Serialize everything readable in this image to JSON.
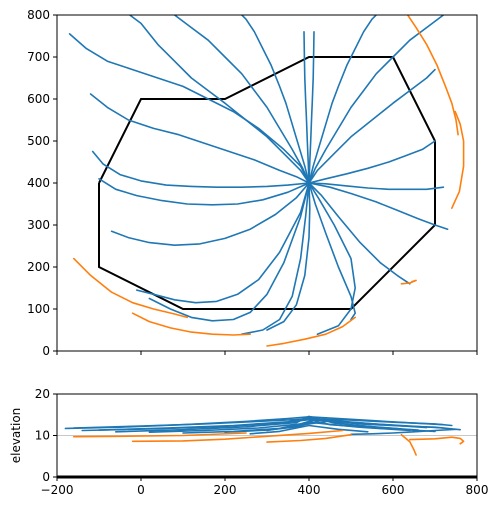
{
  "chart_data": [
    {
      "type": "line",
      "title": "",
      "xlabel": "",
      "ylabel": "",
      "xlim": [
        -200,
        800
      ],
      "ylim": [
        0,
        800
      ],
      "xticks": [
        -200,
        0,
        200,
        400,
        600,
        800
      ],
      "xtick_labels": [
        "",
        "",
        "",
        "",
        "",
        ""
      ],
      "yticks": [
        0,
        100,
        200,
        300,
        400,
        500,
        600,
        700,
        800
      ],
      "ytick_labels": [
        "0",
        "100",
        "200",
        "300",
        "400",
        "500",
        "600",
        "700",
        "800"
      ],
      "grid": false,
      "colors": {
        "stream": "#1f77b4",
        "outside": "#ff7f0e",
        "boundary": "#000000"
      },
      "boundary": {
        "name": "polygon",
        "x": [
          -100,
          0,
          200,
          400,
          600,
          700,
          700,
          500,
          100,
          -100,
          -100
        ],
        "y": [
          400,
          600,
          600,
          700,
          700,
          500,
          300,
          100,
          100,
          200,
          400
        ]
      },
      "center": [
        400,
        400
      ],
      "series": [
        {
          "color": "#1f77b4",
          "x": [
            400,
            380,
            340,
            300,
            250,
            200,
            160,
            120,
            80,
            40,
            0,
            -40
          ],
          "y": [
            400,
            430,
            470,
            510,
            550,
            590,
            620,
            650,
            690,
            730,
            780,
            810
          ]
        },
        {
          "color": "#1f77b4",
          "x": [
            400,
            385,
            360,
            330,
            300,
            270,
            240,
            200,
            160,
            120,
            80,
            60
          ],
          "y": [
            400,
            435,
            480,
            530,
            580,
            620,
            660,
            700,
            740,
            770,
            800,
            815
          ]
        },
        {
          "color": "#1f77b4",
          "x": [
            400,
            390,
            375,
            360,
            345,
            330,
            310,
            290,
            270,
            250,
            230
          ],
          "y": [
            400,
            440,
            490,
            540,
            590,
            630,
            680,
            720,
            760,
            790,
            810
          ]
        },
        {
          "color": "#1f77b4",
          "x": [
            400,
            398,
            396,
            394,
            392,
            390,
            389,
            388
          ],
          "y": [
            400,
            450,
            500,
            550,
            600,
            650,
            700,
            760
          ]
        },
        {
          "color": "#1f77b4",
          "x": [
            400,
            402,
            404,
            406,
            408,
            410,
            411,
            412
          ],
          "y": [
            400,
            450,
            500,
            550,
            600,
            650,
            700,
            760
          ]
        },
        {
          "color": "#1f77b4",
          "x": [
            400,
            410,
            425,
            440,
            455,
            470,
            490,
            510,
            530,
            550,
            570
          ],
          "y": [
            400,
            440,
            490,
            540,
            590,
            630,
            680,
            720,
            760,
            790,
            810
          ]
        },
        {
          "color": "#1f77b4",
          "x": [
            400,
            415,
            440,
            470,
            500,
            530,
            560,
            600,
            640,
            680,
            720,
            740
          ],
          "y": [
            400,
            435,
            480,
            530,
            580,
            620,
            660,
            700,
            740,
            770,
            800,
            815
          ]
        },
        {
          "color": "#1f77b4",
          "x": [
            400,
            420,
            460,
            500,
            550,
            600,
            640,
            680,
            700
          ],
          "y": [
            400,
            430,
            470,
            510,
            550,
            590,
            620,
            650,
            670
          ]
        },
        {
          "color": "#1f77b4",
          "x": [
            -170,
            -130,
            -80,
            -20,
            40,
            100,
            160,
            220,
            280,
            340,
            380,
            400
          ],
          "y": [
            755,
            720,
            690,
            670,
            650,
            630,
            600,
            570,
            530,
            480,
            440,
            400
          ]
        },
        {
          "color": "#1f77b4",
          "x": [
            -120,
            -80,
            -30,
            30,
            90,
            150,
            210,
            270,
            330,
            370,
            400
          ],
          "y": [
            612,
            580,
            550,
            530,
            515,
            495,
            475,
            455,
            430,
            415,
            400
          ]
        },
        {
          "color": "#1f77b4",
          "x": [
            -115,
            -90,
            -50,
            0,
            60,
            120,
            180,
            240,
            300,
            350,
            400
          ],
          "y": [
            475,
            445,
            420,
            405,
            395,
            392,
            390,
            390,
            392,
            395,
            400
          ]
        },
        {
          "color": "#1f77b4",
          "x": [
            -100,
            -60,
            -10,
            50,
            110,
            170,
            230,
            290,
            350,
            400
          ],
          "y": [
            410,
            385,
            370,
            358,
            350,
            348,
            350,
            360,
            378,
            400
          ]
        },
        {
          "color": "#1f77b4",
          "x": [
            -70,
            -30,
            20,
            80,
            140,
            200,
            260,
            320,
            370,
            400
          ],
          "y": [
            285,
            270,
            258,
            252,
            255,
            268,
            290,
            325,
            365,
            400
          ]
        },
        {
          "color": "#1f77b4",
          "x": [
            -10,
            30,
            80,
            130,
            180,
            230,
            280,
            330,
            380,
            400
          ],
          "y": [
            145,
            135,
            122,
            115,
            118,
            135,
            170,
            235,
            330,
            400
          ]
        },
        {
          "color": "#1f77b4",
          "x": [
            20,
            70,
            120,
            170,
            220,
            260,
            300,
            340,
            380,
            400
          ],
          "y": [
            125,
            100,
            80,
            72,
            75,
            92,
            135,
            210,
            320,
            400
          ]
        },
        {
          "color": "#1f77b4",
          "x": [
            240,
            290,
            330,
            360,
            380,
            392,
            400
          ],
          "y": [
            40,
            50,
            75,
            130,
            220,
            320,
            400
          ]
        },
        {
          "color": "#1f77b4",
          "x": [
            300,
            340,
            370,
            390,
            400,
            402,
            400
          ],
          "y": [
            50,
            70,
            110,
            180,
            270,
            340,
            400
          ]
        },
        {
          "color": "#1f77b4",
          "x": [
            500,
            510,
            500,
            470,
            440,
            415,
            400
          ],
          "y": [
            75,
            90,
            130,
            200,
            280,
            350,
            400
          ]
        },
        {
          "color": "#1f77b4",
          "x": [
            420,
            470,
            500,
            510,
            500,
            460,
            425,
            400
          ],
          "y": [
            40,
            60,
            100,
            150,
            220,
            300,
            360,
            400
          ]
        },
        {
          "color": "#1f77b4",
          "x": [
            640,
            610,
            570,
            520,
            470,
            430,
            400
          ],
          "y": [
            160,
            180,
            210,
            260,
            320,
            370,
            400
          ]
        },
        {
          "color": "#1f77b4",
          "x": [
            730,
            700,
            660,
            610,
            560,
            500,
            450,
            400
          ],
          "y": [
            290,
            300,
            315,
            335,
            355,
            375,
            390,
            400
          ]
        },
        {
          "color": "#1f77b4",
          "x": [
            720,
            680,
            640,
            590,
            540,
            490,
            440,
            400
          ],
          "y": [
            390,
            385,
            385,
            385,
            388,
            393,
            398,
            400
          ]
        },
        {
          "color": "#1f77b4",
          "x": [
            700,
            670,
            630,
            590,
            540,
            490,
            440,
            400
          ],
          "y": [
            500,
            480,
            465,
            450,
            435,
            422,
            410,
            400
          ]
        },
        {
          "color": "#ff7f0e",
          "x": [
            -160,
            -120,
            -70,
            -20,
            30,
            80,
            110
          ],
          "y": [
            220,
            180,
            140,
            115,
            100,
            88,
            80
          ]
        },
        {
          "color": "#ff7f0e",
          "x": [
            -20,
            20,
            70,
            120,
            170,
            220,
            260
          ],
          "y": [
            90,
            70,
            55,
            45,
            40,
            38,
            40
          ]
        },
        {
          "color": "#ff7f0e",
          "x": [
            300,
            340,
            390,
            440,
            480,
            510
          ],
          "y": [
            12,
            18,
            28,
            40,
            58,
            80
          ]
        },
        {
          "color": "#ff7f0e",
          "x": [
            620,
            640,
            655,
            645
          ],
          "y": [
            160,
            162,
            168,
            165
          ]
        },
        {
          "color": "#ff7f0e",
          "x": [
            740,
            758,
            768,
            768,
            760,
            748
          ],
          "y": [
            340,
            380,
            440,
            500,
            540,
            570
          ]
        },
        {
          "color": "#ff7f0e",
          "x": [
            635,
            655,
            680,
            705,
            725,
            740,
            750,
            755
          ],
          "y": [
            800,
            770,
            730,
            680,
            630,
            590,
            550,
            515
          ]
        }
      ]
    },
    {
      "type": "line",
      "title": "",
      "xlabel": "",
      "ylabel": "elevation",
      "xlim": [
        -200,
        800
      ],
      "ylim": [
        0,
        20
      ],
      "xticks": [
        -200,
        0,
        200,
        400,
        600,
        800
      ],
      "xtick_labels": [
        "−200",
        "0",
        "200",
        "400",
        "600",
        "800"
      ],
      "yticks": [
        0,
        10,
        20
      ],
      "ytick_labels": [
        "0",
        "10",
        "20"
      ],
      "grid": false,
      "reference_line": 10,
      "baseline": 0,
      "series": [
        {
          "color": "#1f77b4",
          "x": [
            -180,
            -50,
            100,
            250,
            350,
            400,
            450,
            550,
            650,
            720
          ],
          "y": [
            11.7,
            12.0,
            12.6,
            13.4,
            14.1,
            14.5,
            14.2,
            13.6,
            13.0,
            12.6
          ]
        },
        {
          "color": "#1f77b4",
          "x": [
            -160,
            0,
            150,
            300,
            400,
            500,
            600,
            700,
            740
          ],
          "y": [
            11.8,
            12.3,
            12.8,
            13.5,
            14.0,
            13.7,
            13.2,
            12.8,
            12.4
          ]
        },
        {
          "color": "#1f77b4",
          "x": [
            -140,
            20,
            180,
            320,
            400,
            480,
            600,
            720
          ],
          "y": [
            11.2,
            11.6,
            12.1,
            12.9,
            13.8,
            13.3,
            12.5,
            11.8
          ]
        },
        {
          "color": "#1f77b4",
          "x": [
            -100,
            60,
            220,
            350,
            400,
            470,
            580,
            680
          ],
          "y": [
            11.3,
            11.8,
            12.4,
            13.3,
            14.3,
            13.5,
            12.6,
            11.9
          ]
        },
        {
          "color": "#1f77b4",
          "x": [
            -60,
            100,
            250,
            370,
            400,
            460,
            560,
            660
          ],
          "y": [
            10.9,
            11.4,
            12.1,
            13.1,
            14.6,
            13.0,
            12.0,
            11.3
          ]
        },
        {
          "color": "#1f77b4",
          "x": [
            20,
            150,
            280,
            380,
            420,
            500,
            620
          ],
          "y": [
            10.8,
            11.2,
            11.8,
            12.8,
            14.0,
            12.5,
            11.6
          ]
        },
        {
          "color": "#1f77b4",
          "x": [
            100,
            220,
            330,
            400,
            440,
            520,
            640
          ],
          "y": [
            10.6,
            11.0,
            11.7,
            13.2,
            12.8,
            12.0,
            11.2
          ]
        },
        {
          "color": "#1f77b4",
          "x": [
            200,
            300,
            380,
            410,
            450,
            560,
            700
          ],
          "y": [
            10.8,
            11.3,
            12.2,
            13.6,
            12.6,
            11.8,
            11.0
          ]
        },
        {
          "color": "#1f77b4",
          "x": [
            300,
            400,
            450,
            520,
            620,
            700,
            760
          ],
          "y": [
            11.2,
            12.8,
            13.5,
            12.8,
            12.3,
            12.0,
            11.4
          ]
        },
        {
          "color": "#1f77b4",
          "x": [
            500,
            550,
            600,
            650,
            700,
            750
          ],
          "y": [
            10.3,
            10.4,
            10.6,
            10.9,
            11.2,
            11.5
          ]
        },
        {
          "color": "#1f77b4",
          "x": [
            260,
            330,
            400,
            470,
            540
          ],
          "y": [
            10.4,
            11.0,
            12.4,
            11.5,
            10.9
          ]
        },
        {
          "color": "#ff7f0e",
          "x": [
            -160,
            -50,
            100,
            250
          ],
          "y": [
            9.7,
            9.8,
            10.0,
            10.6
          ]
        },
        {
          "color": "#ff7f0e",
          "x": [
            -20,
            100,
            200,
            300,
            400,
            480
          ],
          "y": [
            8.6,
            8.7,
            9.1,
            9.8,
            10.5,
            11.2
          ]
        },
        {
          "color": "#ff7f0e",
          "x": [
            300,
            380,
            440,
            500
          ],
          "y": [
            8.4,
            8.8,
            9.3,
            10.2
          ]
        },
        {
          "color": "#ff7f0e",
          "x": [
            620,
            640,
            650,
            655
          ],
          "y": [
            10.2,
            8.5,
            6.5,
            5.3
          ]
        },
        {
          "color": "#ff7f0e",
          "x": [
            640,
            700,
            740,
            760,
            768,
            760
          ],
          "y": [
            9.0,
            9.2,
            9.6,
            9.3,
            8.6,
            8.0
          ]
        }
      ]
    }
  ]
}
